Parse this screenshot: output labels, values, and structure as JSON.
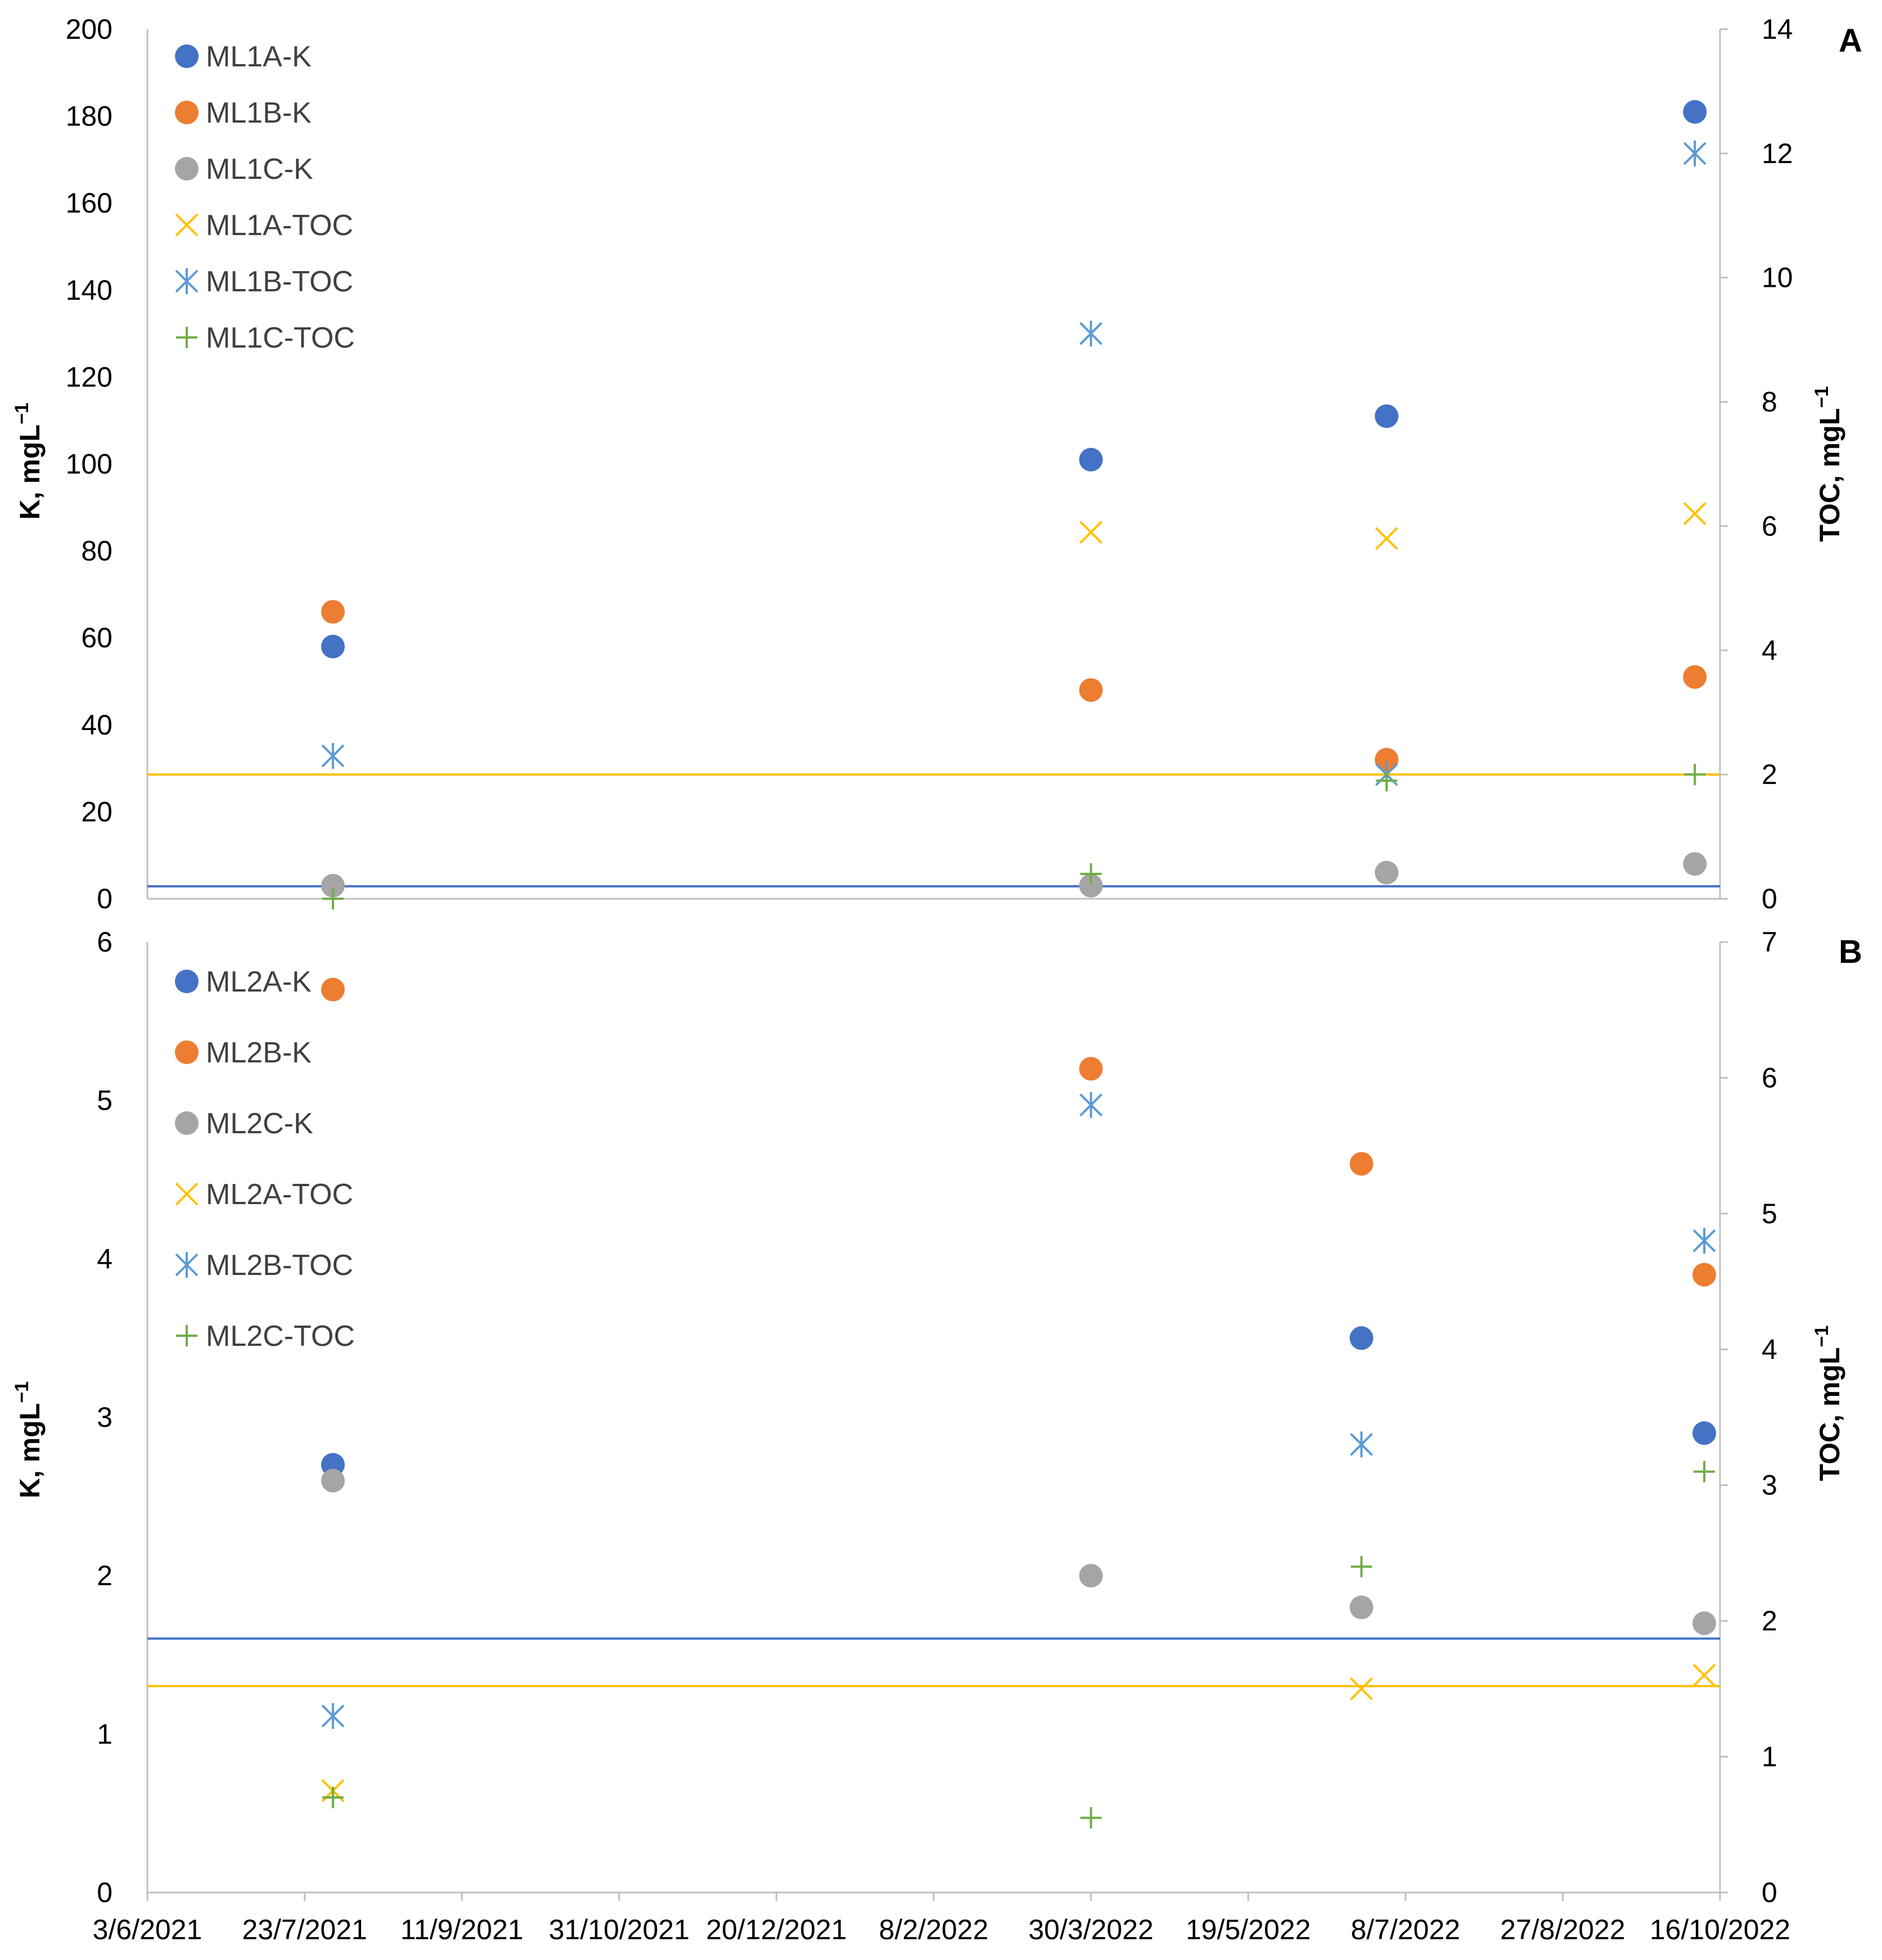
{
  "chart_data": [
    {
      "panel": "A",
      "type": "scatter",
      "y_left_label": "K, mgL",
      "y_left_sup": "−1",
      "y_right_label": "TOC, mgL",
      "y_right_sup": "−1",
      "y_left_range": [
        0,
        200
      ],
      "y_left_ticks": [
        "0",
        "20",
        "40",
        "60",
        "80",
        "100",
        "120",
        "140",
        "160",
        "180",
        "200"
      ],
      "y_right_range": [
        0,
        14
      ],
      "y_right_ticks": [
        "0",
        "2",
        "4",
        "6",
        "8",
        "10",
        "12",
        "14"
      ],
      "reference_lines": [
        {
          "axis": "right",
          "value": 2.0,
          "color": "#FFC000"
        },
        {
          "axis": "right",
          "value": 0.2,
          "color": "#4472C4"
        }
      ],
      "series": [
        {
          "name": "ML1A-K",
          "axis": "left",
          "marker": "circle",
          "color": "#4472C4",
          "points": [
            [
              "2021-08-01",
              58
            ],
            [
              "2022-03-30",
              101
            ],
            [
              "2022-07-02",
              111
            ],
            [
              "2022-10-08",
              181
            ]
          ]
        },
        {
          "name": "ML1B-K",
          "axis": "left",
          "marker": "circle",
          "color": "#ED7D31",
          "points": [
            [
              "2021-08-01",
              66
            ],
            [
              "2022-03-30",
              48
            ],
            [
              "2022-07-02",
              32
            ],
            [
              "2022-10-08",
              51
            ]
          ]
        },
        {
          "name": "ML1C-K",
          "axis": "left",
          "marker": "circle",
          "color": "#A5A5A5",
          "points": [
            [
              "2021-08-01",
              3
            ],
            [
              "2022-03-30",
              3
            ],
            [
              "2022-07-02",
              6
            ],
            [
              "2022-10-08",
              8
            ]
          ]
        },
        {
          "name": "ML1A-TOC",
          "axis": "right",
          "marker": "x",
          "color": "#FFC000",
          "points": [
            [
              "2022-03-30",
              5.9
            ],
            [
              "2022-07-02",
              5.8
            ],
            [
              "2022-10-08",
              6.2
            ]
          ]
        },
        {
          "name": "ML1B-TOC",
          "axis": "right",
          "marker": "asterisk",
          "color": "#5B9BD5",
          "points": [
            [
              "2021-08-01",
              2.3
            ],
            [
              "2022-03-30",
              9.1
            ],
            [
              "2022-07-02",
              2.0
            ],
            [
              "2022-10-08",
              12.0
            ]
          ]
        },
        {
          "name": "ML1C-TOC",
          "axis": "right",
          "marker": "plus",
          "color": "#70AD47",
          "points": [
            [
              "2021-08-01",
              0.0
            ],
            [
              "2022-03-30",
              0.4
            ],
            [
              "2022-07-02",
              1.9
            ],
            [
              "2022-10-08",
              2.0
            ]
          ]
        }
      ]
    },
    {
      "panel": "B",
      "type": "scatter",
      "y_left_label": "K, mgL",
      "y_left_sup": "−1",
      "y_right_label": "TOC, mgL",
      "y_right_sup": "−1",
      "y_left_range": [
        0,
        6
      ],
      "y_left_ticks": [
        "0",
        "1",
        "2",
        "3",
        "4",
        "5",
        "6"
      ],
      "y_right_range": [
        0,
        7
      ],
      "y_right_ticks": [
        "0",
        "1",
        "2",
        "3",
        "4",
        "5",
        "6",
        "7"
      ],
      "x_ticks": [
        "3/6/2021",
        "23/7/2021",
        "11/9/2021",
        "31/10/2021",
        "20/12/2021",
        "8/2/2022",
        "30/3/2022",
        "19/5/2022",
        "8/7/2022",
        "27/8/2022",
        "16/10/2022"
      ],
      "x_range": [
        "2021-06-03",
        "2022-10-16"
      ],
      "reference_lines": [
        {
          "axis": "right",
          "value": 1.87,
          "color": "#4472C4"
        },
        {
          "axis": "right",
          "value": 1.52,
          "color": "#FFC000"
        }
      ],
      "series": [
        {
          "name": "ML2A-K",
          "axis": "left",
          "marker": "circle",
          "color": "#4472C4",
          "points": [
            [
              "2021-08-01",
              2.7
            ],
            [
              "2022-06-24",
              3.5
            ],
            [
              "2022-10-11",
              2.9
            ]
          ]
        },
        {
          "name": "ML2B-K",
          "axis": "left",
          "marker": "circle",
          "color": "#ED7D31",
          "points": [
            [
              "2021-08-01",
              5.7
            ],
            [
              "2022-03-30",
              5.2
            ],
            [
              "2022-06-24",
              4.6
            ],
            [
              "2022-10-11",
              3.9
            ]
          ]
        },
        {
          "name": "ML2C-K",
          "axis": "left",
          "marker": "circle",
          "color": "#A5A5A5",
          "points": [
            [
              "2021-08-01",
              2.6
            ],
            [
              "2022-03-30",
              2.0
            ],
            [
              "2022-06-24",
              1.8
            ],
            [
              "2022-10-11",
              1.7
            ]
          ]
        },
        {
          "name": "ML2A-TOC",
          "axis": "right",
          "marker": "x",
          "color": "#FFC000",
          "points": [
            [
              "2021-08-01",
              0.75
            ],
            [
              "2022-06-24",
              1.5
            ],
            [
              "2022-10-11",
              1.6
            ]
          ]
        },
        {
          "name": "ML2B-TOC",
          "axis": "right",
          "marker": "asterisk",
          "color": "#5B9BD5",
          "points": [
            [
              "2021-08-01",
              1.3
            ],
            [
              "2022-03-30",
              5.8
            ],
            [
              "2022-06-24",
              3.3
            ],
            [
              "2022-10-11",
              4.8
            ]
          ]
        },
        {
          "name": "ML2C-TOC",
          "axis": "right",
          "marker": "plus",
          "color": "#70AD47",
          "points": [
            [
              "2021-08-01",
              0.7
            ],
            [
              "2022-03-30",
              0.55
            ],
            [
              "2022-06-24",
              2.4
            ],
            [
              "2022-10-11",
              3.1
            ]
          ]
        }
      ]
    }
  ]
}
